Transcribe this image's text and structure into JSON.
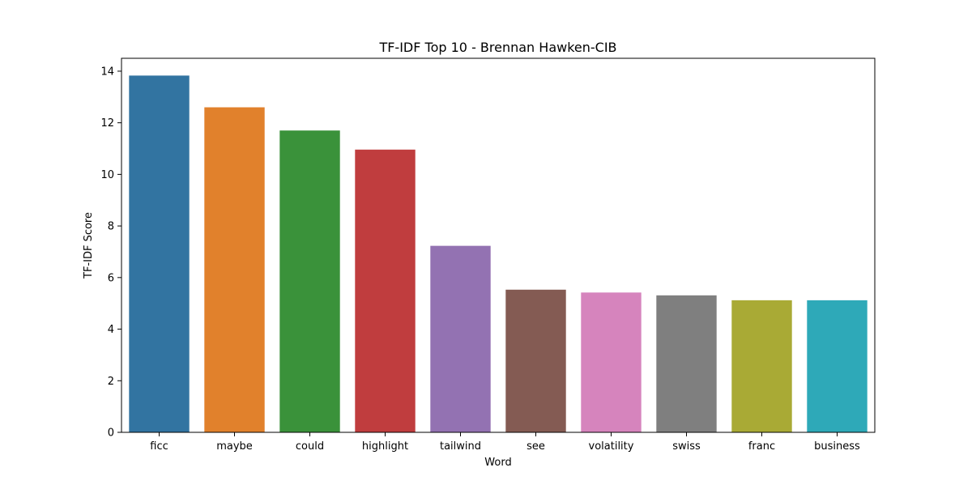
{
  "chart_data": {
    "type": "bar",
    "title": "TF-IDF Top 10 - Brennan Hawken-CIB",
    "xlabel": "Word",
    "ylabel": "TF-IDF Score",
    "ylim": [
      0,
      14.5
    ],
    "yticks": [
      0,
      2,
      4,
      6,
      8,
      10,
      12,
      14
    ],
    "ytick_labels": [
      "0",
      "2",
      "4",
      "6",
      "8",
      "10",
      "12",
      "14"
    ],
    "grid": false,
    "legend": false,
    "categories": [
      "ficc",
      "maybe",
      "could",
      "highlight",
      "tailwind",
      "see",
      "volatility",
      "swiss",
      "franc",
      "business"
    ],
    "values": [
      13.83,
      12.6,
      11.7,
      10.96,
      7.23,
      5.53,
      5.42,
      5.31,
      5.12,
      5.12
    ],
    "colors": [
      "#3274a1",
      "#e1812c",
      "#3a923a",
      "#c03d3e",
      "#9372b2",
      "#845b53",
      "#d684bd",
      "#7f7f7f",
      "#a9aa35",
      "#2ea9b8"
    ]
  }
}
